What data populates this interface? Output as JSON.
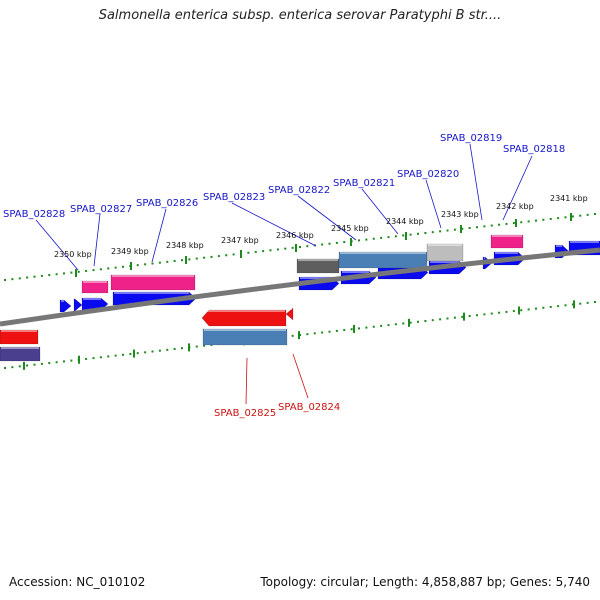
{
  "title": "Salmonella enterica subsp. enterica serovar Paratyphi B str....",
  "footer": {
    "accession": "Accession: NC_010102",
    "summary": "Topology: circular; Length: 4,858,887 bp; Genes: 5,740"
  },
  "colors": {
    "backbone": "#777777",
    "tick": "#1e8a1e",
    "forward_cds": "#0a0aee",
    "reverse_cds": "#ee1111",
    "rrna_pink": "#ee2288",
    "steelblue": "#4a7fb5",
    "label_forward": "#1515c8",
    "label_reverse": "#cc1111"
  },
  "ticks": [
    "2350 kbp",
    "2349 kbp",
    "2348 kbp",
    "2347 kbp",
    "2346 kbp",
    "2345 kbp",
    "2344 kbp",
    "2343 kbp",
    "2342 kbp",
    "2341 kbp"
  ],
  "gene_labels_top": [
    "SPAB_02828",
    "SPAB_02827",
    "SPAB_02826",
    "SPAB_02823",
    "SPAB_02822",
    "SPAB_02821",
    "SPAB_02820",
    "SPAB_02819",
    "SPAB_02818"
  ],
  "gene_labels_bottom": [
    "SPAB_02825",
    "SPAB_02824"
  ]
}
